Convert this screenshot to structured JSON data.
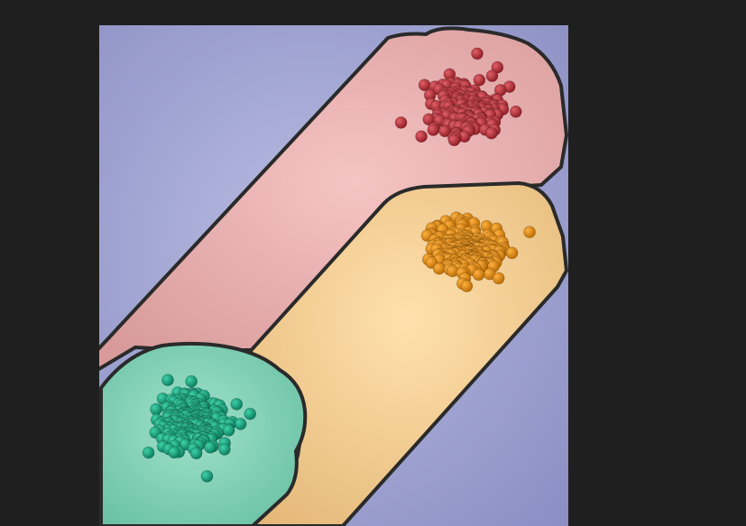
{
  "scene": {
    "background_color": "#1f1f1f",
    "panel_color": "#9a9ccf",
    "outline_color": "#2a2a2a",
    "clusters": [
      {
        "name": "red-cluster",
        "particle_count": 170,
        "color": "#c0313a",
        "region_color": "#eeb0b0"
      },
      {
        "name": "orange-cluster",
        "particle_count": 230,
        "color": "#e98a00",
        "region_color": "#f6c98a"
      },
      {
        "name": "green-cluster",
        "particle_count": 240,
        "color": "#14a882",
        "region_color": "#7fd3b8"
      }
    ]
  }
}
